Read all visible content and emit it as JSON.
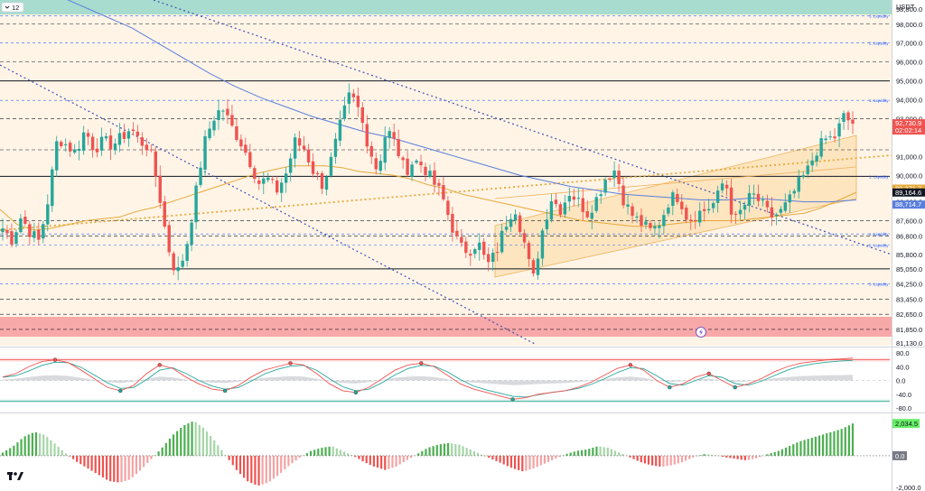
{
  "header": {
    "collapse_badge": "12"
  },
  "colors": {
    "up": "#26a69a",
    "down": "#ef5350",
    "liquidity_line": "#2962ff",
    "ma_blue": "#5b7fdc",
    "ma_orange": "#e6a93a",
    "band_fill": "#fde2b8",
    "red_zone": "#f7a8a8",
    "teal_zone": "#a8dccf",
    "osc_fast": "#ef5350",
    "osc_slow": "#26a69a",
    "hist_pos": "#4caf50",
    "hist_neg": "#ef5350"
  },
  "icons": {
    "logo": "tradingview-logo-icon",
    "alert": "lightning-icon"
  },
  "chart_data": [
    {
      "type": "candlestick",
      "currency": "USDT",
      "y_axis_ticks": [
        "98,800.0",
        "98,000.0",
        "97,000.0",
        "96,000.0",
        "95,000.0",
        "94,000.0",
        "93,000.0",
        "91,000.0",
        "90,000.0",
        "88,600.0",
        "87,600.0",
        "86,800.0",
        "85,800.0",
        "85,050.0",
        "84,250.0",
        "83,450.0",
        "82,650.0",
        "81,850.0",
        "81,130.0"
      ],
      "ylim": [
        81130,
        98800
      ],
      "price_tags": [
        {
          "label": "92,730.9",
          "sublabel": "02:02:14",
          "value": 92730.9,
          "color": "#ef5350"
        },
        {
          "label": "89,271.7",
          "value": 89271.7,
          "color": "#e6a93a"
        },
        {
          "label": "89,164.6",
          "value": 89164.6,
          "color": "#131722"
        },
        {
          "label": "88,714.7",
          "value": 88714.7,
          "color": "#5b7fdc"
        }
      ],
      "liquidity_levels": [
        {
          "label": "3. Liquidity",
          "value": 98450
        },
        {
          "label": "2. Liquidity",
          "value": 97000
        },
        {
          "label": "1. Liquidity",
          "value": 93970
        },
        {
          "label": "1. Liquidity",
          "value": 89950
        },
        {
          "label": "1. Liquidity",
          "value": 86900
        },
        {
          "label": "2. Liquidity",
          "value": 86300
        },
        {
          "label": "3. Liquidity",
          "value": 84250
        }
      ],
      "support_resistance": [
        95000,
        89950,
        85050
      ],
      "dashed_levels": [
        98000,
        96000,
        93000,
        91350,
        87600,
        86800,
        83450,
        82650,
        81850
      ],
      "close_path": [
        87200,
        86600,
        87800,
        87000,
        86500,
        88800,
        92000,
        91600,
        91200,
        92400,
        91400,
        91800,
        91600,
        92000,
        92500,
        91800,
        91500,
        89400,
        86400,
        84700,
        86000,
        88700,
        91600,
        93000,
        93600,
        92600,
        91800,
        90800,
        89600,
        89800,
        89200,
        90100,
        91800,
        91400,
        90200,
        89500,
        90900,
        92800,
        94300,
        93400,
        91600,
        90200,
        92500,
        91600,
        90200,
        90800,
        90500,
        89700,
        89000,
        87500,
        86200,
        86000,
        86500,
        85200,
        85900,
        87400,
        88400,
        86600,
        84400,
        87000,
        88800,
        88200,
        89100,
        88600,
        88000,
        88800,
        89900,
        90300,
        88600,
        87800,
        87400,
        87000,
        87600,
        88800,
        88900,
        87600,
        88000,
        88200,
        88600,
        89900,
        87500,
        88300,
        89000,
        88500,
        87800,
        88000,
        88600,
        89500,
        90200,
        91300,
        91900,
        92000,
        93100,
        92730.9
      ],
      "ma_orange_path": [
        88200,
        87400,
        87100,
        87200,
        87400,
        87600,
        87700,
        87800,
        88100,
        88300,
        88600,
        88900,
        89200,
        89500,
        89800,
        90100,
        90300,
        90500,
        90500,
        90500,
        90400,
        90200,
        90100,
        90000,
        89800,
        89500,
        89300,
        89000,
        88800,
        88600,
        88400,
        88200,
        88000,
        87800,
        87600,
        87500,
        87400,
        87300,
        87300,
        87400,
        87500,
        87600,
        87600,
        87600,
        87700,
        87800,
        87900,
        88000,
        88300,
        88700,
        89100
      ],
      "ma_blue_path": [
        99600,
        99000,
        98400,
        97800,
        97000,
        96200,
        95400,
        94700,
        94100,
        93600,
        93100,
        92700,
        92300,
        92000,
        91600,
        91200,
        90800,
        90400,
        90000,
        89700,
        89400,
        89200,
        89000,
        88900,
        88800,
        88700,
        88700,
        88800,
        88700,
        88600,
        88600,
        88700
      ],
      "oscillator": {
        "ticks": [
          "80.0",
          "40.0",
          "0.0",
          "-40.0",
          "-80.0"
        ],
        "ylim": [
          -80,
          80
        ],
        "upper_band": 60,
        "lower_band": -60,
        "fast_path": [
          10,
          20,
          40,
          55,
          60,
          52,
          30,
          5,
          -20,
          -30,
          -15,
          20,
          45,
          35,
          10,
          -10,
          -25,
          -30,
          -15,
          10,
          30,
          40,
          50,
          45,
          20,
          -10,
          -30,
          -35,
          -20,
          5,
          30,
          45,
          50,
          40,
          15,
          -10,
          -25,
          -35,
          -45,
          -55,
          -50,
          -40,
          -35,
          -30,
          -20,
          -5,
          15,
          35,
          45,
          30,
          0,
          -20,
          -10,
          10,
          20,
          0,
          -20,
          -10,
          5,
          25,
          40,
          50,
          55,
          60,
          62,
          65
        ]
      },
      "histogram": {
        "ticks": [
          "2,034.5",
          "0.0",
          "-2,000.0"
        ],
        "current_label": "2,034.5",
        "zero_label": "0.0",
        "ylim": [
          -2000,
          2500
        ],
        "envelope": [
          200,
          600,
          1200,
          1500,
          1300,
          700,
          100,
          -400,
          -800,
          -1200,
          -1600,
          -1700,
          -1500,
          -900,
          -200,
          500,
          1300,
          1900,
          2200,
          1700,
          900,
          0,
          -900,
          -1600,
          -1900,
          -1700,
          -1200,
          -600,
          -100,
          300,
          500,
          600,
          300,
          0,
          -400,
          -700,
          -900,
          -700,
          -300,
          100,
          500,
          700,
          800,
          700,
          400,
          100,
          -200,
          -500,
          -800,
          -1000,
          -800,
          -500,
          -200,
          100,
          300,
          400,
          600,
          500,
          200,
          -100,
          -400,
          -600,
          -700,
          -600,
          -400,
          -100,
          100,
          50,
          -100,
          -200,
          -300,
          -150,
          100,
          300,
          600,
          900,
          1100,
          1300,
          1500,
          1700,
          2034
        ]
      }
    }
  ]
}
